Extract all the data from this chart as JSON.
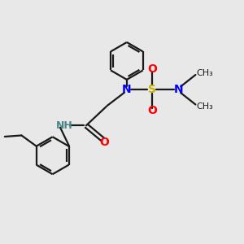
{
  "bg_color": "#e8e8e8",
  "bond_color": "#1a1a1a",
  "N_color": "#0000ff",
  "S_color": "#c8b400",
  "O_color": "#ff0000",
  "NH_color": "#4a8888",
  "line_width": 1.6,
  "figsize": [
    3.0,
    3.0
  ],
  "dpi": 100,
  "xlim": [
    0,
    10
  ],
  "ylim": [
    0,
    10
  ]
}
